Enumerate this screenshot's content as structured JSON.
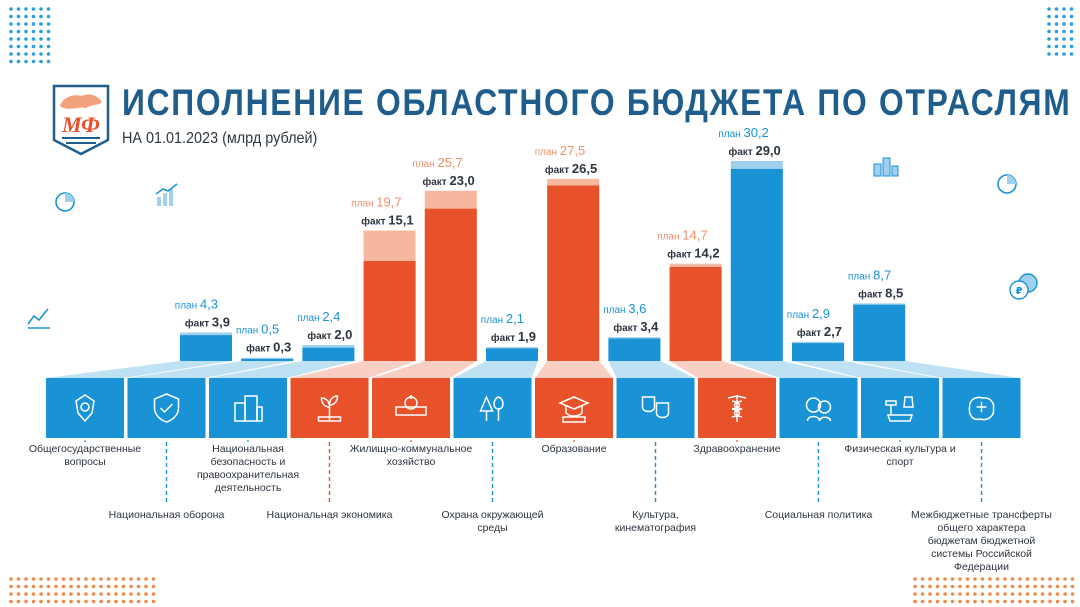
{
  "header": {
    "title": "ИСПОЛНЕНИЕ ОБЛАСТНОГО БЮДЖЕТА ПО ОТРАСЛЯМ",
    "subtitle": "НА 01.01.2023 (млрд рублей)",
    "logo_text": "МФ"
  },
  "colors": {
    "blue": "#1a92d6",
    "orange": "#e8522a",
    "orange_light": "#f6b79f",
    "blue_light": "#9fd0ee",
    "title": "#1f5d8c",
    "dots_blue": "#2a9fe0",
    "dots_orange": "#f08a4a"
  },
  "labels": {
    "plan": "план",
    "fact": "факт"
  },
  "chart_data": {
    "type": "bar",
    "title": "ИСПОЛНЕНИЕ ОБЛАСТНОГО БЮДЖЕТА ПО ОТРАСЛЯМ",
    "subtitle": "НА 01.01.2023 (млрд рублей)",
    "ylabel": "",
    "xlabel": "",
    "ylim": [
      0,
      30.2
    ],
    "grid": false,
    "categories": [
      {
        "name": "Общегосударственные вопросы",
        "color": "blue",
        "icon": "emblem-icon",
        "label_row": "top",
        "plan_text": "4,3",
        "fact_text": "3,9"
      },
      {
        "name": "Национальная оборона",
        "color": "blue",
        "icon": "shield-icon",
        "label_row": "bottom",
        "plan_text": "0,5",
        "fact_text": "0,3"
      },
      {
        "name": "Национальная безопасность и правоохранительная деятельность",
        "color": "blue",
        "icon": "buildings-icon",
        "label_row": "top",
        "plan_text": "2,4",
        "fact_text": "2,0"
      },
      {
        "name": "Национальная экономика",
        "color": "orange",
        "icon": "money-plant-icon",
        "label_row": "bottom",
        "plan_text": "19,7",
        "fact_text": "15,1"
      },
      {
        "name": "Жилищно-коммунальное хозяйство",
        "color": "orange",
        "icon": "pipe-valve-icon",
        "label_row": "top",
        "plan_text": "25,7",
        "fact_text": "23,0"
      },
      {
        "name": "Охрана окружающей среды",
        "color": "blue",
        "icon": "trees-icon",
        "label_row": "bottom",
        "plan_text": "2,1",
        "fact_text": "1,9"
      },
      {
        "name": "Образование",
        "color": "orange",
        "icon": "graduation-cap-icon",
        "label_row": "top",
        "plan_text": "27,5",
        "fact_text": "26,5"
      },
      {
        "name": "Культура, кинематография",
        "color": "blue",
        "icon": "theatre-masks-icon",
        "label_row": "bottom",
        "plan_text": "3,6",
        "fact_text": "3,4"
      },
      {
        "name": "Здравоохранение",
        "color": "orange",
        "icon": "caduceus-icon",
        "label_row": "top",
        "plan_text": "14,7",
        "fact_text": "14,2"
      },
      {
        "name": "Социальная политика",
        "color": "blue",
        "icon": "family-icon",
        "label_row": "bottom",
        "plan_text": "30,2",
        "fact_text": "29,0"
      },
      {
        "name": "Физическая культура и спорт",
        "color": "blue",
        "icon": "sports-icon",
        "label_row": "top",
        "plan_text": "2,9",
        "fact_text": "2,7"
      },
      {
        "name": "Межбюджетные трансферты общего характера бюджетам бюджетной системы Российской Федерации",
        "color": "blue",
        "icon": "region-map-icon",
        "label_row": "bottom",
        "plan_text": "8,7",
        "fact_text": "8,5"
      }
    ],
    "series": [
      {
        "name": "план",
        "values": [
          4.3,
          0.5,
          2.4,
          19.7,
          25.7,
          2.1,
          27.5,
          3.6,
          14.7,
          30.2,
          2.9,
          8.7
        ]
      },
      {
        "name": "факт",
        "values": [
          3.9,
          0.3,
          2.0,
          15.1,
          23.0,
          1.9,
          26.5,
          3.4,
          14.2,
          29.0,
          2.7,
          8.5
        ]
      }
    ]
  }
}
